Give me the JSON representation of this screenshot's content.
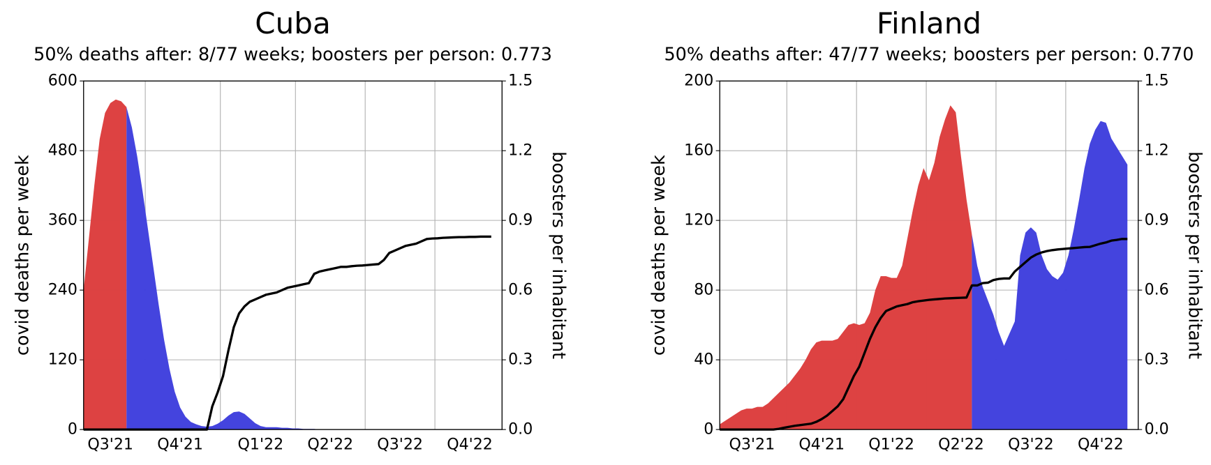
{
  "chart_data": [
    {
      "type": "area",
      "title": "Cuba",
      "subtitle": "50% deaths after: 8/77 weeks; boosters per person: 0.773",
      "ylabel": "covid deaths per week",
      "y2label": "boosters per inhabitant",
      "categories": [
        null,
        null,
        null,
        null,
        null,
        "Q3'21",
        null,
        null,
        null,
        null,
        null,
        null,
        null,
        null,
        null,
        null,
        null,
        null,
        "Q4'21",
        null,
        null,
        null,
        null,
        null,
        null,
        null,
        null,
        null,
        null,
        null,
        null,
        null,
        null,
        "Q1'22",
        null,
        null,
        null,
        null,
        null,
        null,
        null,
        null,
        null,
        null,
        null,
        null,
        "Q2'22",
        null,
        null,
        null,
        null,
        null,
        null,
        null,
        null,
        null,
        null,
        null,
        null,
        "Q3'22",
        null,
        null,
        null,
        null,
        null,
        null,
        null,
        null,
        null,
        null,
        null,
        null,
        "Q4'22",
        null,
        null,
        null,
        null
      ],
      "series": [
        {
          "color": "#dc3e3e",
          "values": [
            240,
            330,
            420,
            500,
            545,
            562,
            568,
            565,
            555,
            null,
            null,
            null,
            null,
            null,
            null,
            null,
            null,
            null,
            null,
            null,
            null,
            null,
            null,
            null,
            null,
            null,
            null,
            null,
            null,
            null,
            null,
            null,
            null,
            null,
            null,
            null,
            null,
            null,
            null,
            null,
            null,
            null,
            null,
            null,
            null,
            null,
            null,
            null,
            null,
            null,
            null,
            null,
            null,
            null,
            null,
            null,
            null,
            null,
            null,
            null,
            null,
            null,
            null,
            null,
            null,
            null,
            null,
            null,
            null,
            null,
            null,
            null,
            null,
            null,
            null,
            null,
            null
          ]
        },
        {
          "color": "#4040dd",
          "values": [
            null,
            null,
            null,
            null,
            null,
            null,
            null,
            null,
            555,
            520,
            470,
            410,
            345,
            280,
            215,
            155,
            105,
            65,
            38,
            22,
            13,
            9,
            6,
            5,
            6,
            10,
            16,
            24,
            30,
            31,
            27,
            19,
            11,
            6,
            4,
            4,
            4,
            3,
            3,
            2,
            2,
            1,
            1,
            1,
            0,
            0,
            0,
            0,
            0,
            0,
            0,
            0,
            0,
            0,
            0,
            0,
            0,
            0,
            0,
            0,
            0,
            0,
            0,
            0,
            0,
            0,
            0,
            0,
            0,
            0,
            0,
            0,
            0,
            0,
            0,
            0,
            0
          ]
        },
        {
          "type": "line",
          "axis": "y2",
          "color": "#000000",
          "values": [
            0,
            0,
            0,
            0,
            0,
            0,
            0,
            0,
            0,
            0,
            0,
            0,
            0,
            0,
            0,
            0,
            0,
            0,
            0,
            0,
            0,
            0,
            0,
            0,
            0.1,
            0.16,
            0.23,
            0.34,
            0.44,
            0.5,
            0.53,
            0.55,
            0.56,
            0.57,
            0.58,
            0.585,
            0.59,
            0.6,
            0.61,
            0.615,
            0.62,
            0.625,
            0.63,
            0.67,
            0.68,
            0.685,
            0.69,
            0.695,
            0.7,
            0.7,
            0.703,
            0.705,
            0.706,
            0.708,
            0.71,
            0.712,
            0.73,
            0.76,
            0.77,
            0.78,
            0.79,
            0.795,
            0.8,
            0.81,
            0.82,
            0.822,
            0.823,
            0.825,
            0.826,
            0.827,
            0.828,
            0.828,
            0.829,
            0.829,
            0.83,
            0.83,
            0.83
          ]
        }
      ],
      "ylim": [
        0,
        600
      ],
      "yticks": [
        0,
        120,
        240,
        360,
        480,
        600
      ],
      "y2lim": [
        0,
        1.5
      ],
      "y2ticks": [
        {
          "value": 0,
          "label": "0.0"
        },
        0.3,
        0.6,
        0.9,
        1.2,
        1.5
      ],
      "grid": true
    },
    {
      "type": "area",
      "title": "Finland",
      "subtitle": "50% deaths after: 47/77 weeks; boosters per person: 0.770",
      "ylabel": "covid deaths per week",
      "y2label": "boosters per inhabitant",
      "categories": [
        null,
        null,
        null,
        null,
        null,
        null,
        "Q3'21",
        null,
        null,
        null,
        null,
        null,
        null,
        null,
        null,
        null,
        null,
        null,
        null,
        "Q4'21",
        null,
        null,
        null,
        null,
        null,
        null,
        null,
        null,
        null,
        null,
        null,
        null,
        "Q1'22",
        null,
        null,
        null,
        null,
        null,
        null,
        null,
        null,
        null,
        null,
        null,
        null,
        "Q2'22",
        null,
        null,
        null,
        null,
        null,
        null,
        null,
        null,
        null,
        null,
        null,
        null,
        "Q3'22",
        null,
        null,
        null,
        null,
        null,
        null,
        null,
        null,
        null,
        null,
        null,
        null,
        "Q4'22",
        null,
        null,
        null,
        null,
        null
      ],
      "series": [
        {
          "color": "#dc3e3e",
          "values": [
            3,
            5,
            7,
            9,
            11,
            12,
            12,
            13,
            13,
            15,
            18,
            21,
            24,
            27,
            31,
            35,
            40,
            46,
            50,
            51,
            51,
            51,
            52,
            56,
            60,
            61,
            60,
            61,
            67,
            80,
            88,
            88,
            87,
            87,
            94,
            110,
            126,
            140,
            150,
            143,
            153,
            168,
            178,
            186,
            182,
            156,
            132,
            112,
            null,
            null,
            null,
            null,
            null,
            null,
            null,
            null,
            null,
            null,
            null,
            null,
            null,
            null,
            null,
            null,
            null,
            null,
            null,
            null,
            null,
            null,
            null,
            null,
            null,
            null,
            null,
            null,
            null
          ]
        },
        {
          "color": "#4040dd",
          "values": [
            null,
            null,
            null,
            null,
            null,
            null,
            null,
            null,
            null,
            null,
            null,
            null,
            null,
            null,
            null,
            null,
            null,
            null,
            null,
            null,
            null,
            null,
            null,
            null,
            null,
            null,
            null,
            null,
            null,
            null,
            null,
            null,
            null,
            null,
            null,
            null,
            null,
            null,
            null,
            null,
            null,
            null,
            null,
            null,
            null,
            null,
            null,
            112,
            94,
            82,
            74,
            66,
            56,
            48,
            55,
            62,
            100,
            113,
            116,
            113,
            100,
            92,
            88,
            86,
            90,
            100,
            115,
            132,
            150,
            164,
            172,
            177,
            176,
            167,
            162,
            157,
            152
          ]
        },
        {
          "type": "line",
          "axis": "y2",
          "color": "#000000",
          "values": [
            0,
            0,
            0,
            0,
            0,
            0,
            0,
            0,
            0,
            0,
            0,
            0.003,
            0.008,
            0.012,
            0.016,
            0.019,
            0.022,
            0.025,
            0.033,
            0.045,
            0.06,
            0.08,
            0.1,
            0.13,
            0.18,
            0.23,
            0.27,
            0.33,
            0.39,
            0.44,
            0.48,
            0.51,
            0.52,
            0.53,
            0.535,
            0.54,
            0.548,
            0.552,
            0.555,
            0.558,
            0.56,
            0.562,
            0.564,
            0.565,
            0.566,
            0.567,
            0.568,
            0.62,
            0.62,
            0.63,
            0.632,
            0.643,
            0.648,
            0.65,
            0.65,
            0.68,
            0.7,
            0.72,
            0.74,
            0.753,
            0.762,
            0.768,
            0.772,
            0.775,
            0.777,
            0.779,
            0.781,
            0.783,
            0.785,
            0.786,
            0.793,
            0.8,
            0.805,
            0.813,
            0.816,
            0.82,
            0.82
          ]
        }
      ],
      "ylim": [
        0,
        200
      ],
      "yticks": [
        0,
        40,
        80,
        120,
        160,
        200
      ],
      "y2lim": [
        0,
        1.5
      ],
      "y2ticks": [
        {
          "value": 0,
          "label": "0.0"
        },
        0.3,
        0.6,
        0.9,
        1.2,
        1.5
      ],
      "grid": true
    }
  ]
}
